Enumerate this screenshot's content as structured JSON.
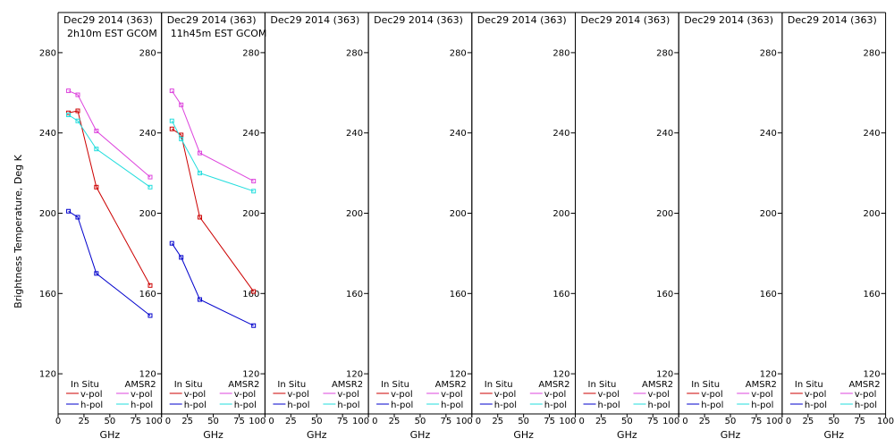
{
  "chart_data": {
    "type": "line",
    "ylabel": "Brightness Temperature, Deg K",
    "xlabel": "GHz",
    "xlim": [
      0,
      100
    ],
    "ylim": [
      100,
      300
    ],
    "xticks": [
      0,
      25,
      50,
      75,
      100
    ],
    "yticks": [
      120,
      160,
      200,
      240,
      280
    ],
    "legend": {
      "header_left": "In Situ",
      "header_right": "AMSR2",
      "insitu_v": "v-pol",
      "insitu_h": "h-pol",
      "amsr2_v": "v-pol",
      "amsr2_h": "h-pol",
      "colors": {
        "insitu_v": "#cc0000",
        "insitu_h": "#0000cc",
        "amsr2_v": "#dd44dd",
        "amsr2_h": "#22dddd"
      }
    },
    "panels": [
      {
        "title": "Dec29 2014 (363)",
        "subtitle": "2h10m EST GCOM",
        "series": [
          {
            "name": "In Situ v-pol",
            "x": [
              10,
              19,
              37,
              89
            ],
            "y": [
              250,
              251,
              213,
              164
            ]
          },
          {
            "name": "In Situ h-pol",
            "x": [
              10,
              19,
              37,
              89
            ],
            "y": [
              201,
              198,
              170,
              149
            ]
          },
          {
            "name": "AMSR2 v-pol",
            "x": [
              10,
              19,
              37,
              89
            ],
            "y": [
              261,
              259,
              241,
              218
            ]
          },
          {
            "name": "AMSR2 h-pol",
            "x": [
              10,
              19,
              37,
              89
            ],
            "y": [
              249,
              246,
              232,
              213
            ]
          }
        ]
      },
      {
        "title": "Dec29 2014 (363)",
        "subtitle": "11h45m EST GCOM",
        "series": [
          {
            "name": "In Situ v-pol",
            "x": [
              10,
              19,
              37,
              89
            ],
            "y": [
              242,
              239,
              198,
              161
            ]
          },
          {
            "name": "In Situ h-pol",
            "x": [
              10,
              19,
              37,
              89
            ],
            "y": [
              185,
              178,
              157,
              144
            ]
          },
          {
            "name": "AMSR2 v-pol",
            "x": [
              10,
              19,
              37,
              89
            ],
            "y": [
              261,
              254,
              230,
              216
            ]
          },
          {
            "name": "AMSR2 h-pol",
            "x": [
              10,
              19,
              37,
              89
            ],
            "y": [
              246,
              237,
              220,
              211
            ]
          }
        ]
      },
      {
        "title": "Dec29 2014 (363)",
        "subtitle": "",
        "series": []
      },
      {
        "title": "Dec29 2014 (363)",
        "subtitle": "",
        "series": []
      },
      {
        "title": "Dec29 2014 (363)",
        "subtitle": "",
        "series": []
      },
      {
        "title": "Dec29 2014 (363)",
        "subtitle": "",
        "series": []
      },
      {
        "title": "Dec29 2014 (363)",
        "subtitle": "",
        "series": []
      },
      {
        "title": "Dec29 2014 (363)",
        "subtitle": "",
        "series": []
      }
    ]
  }
}
